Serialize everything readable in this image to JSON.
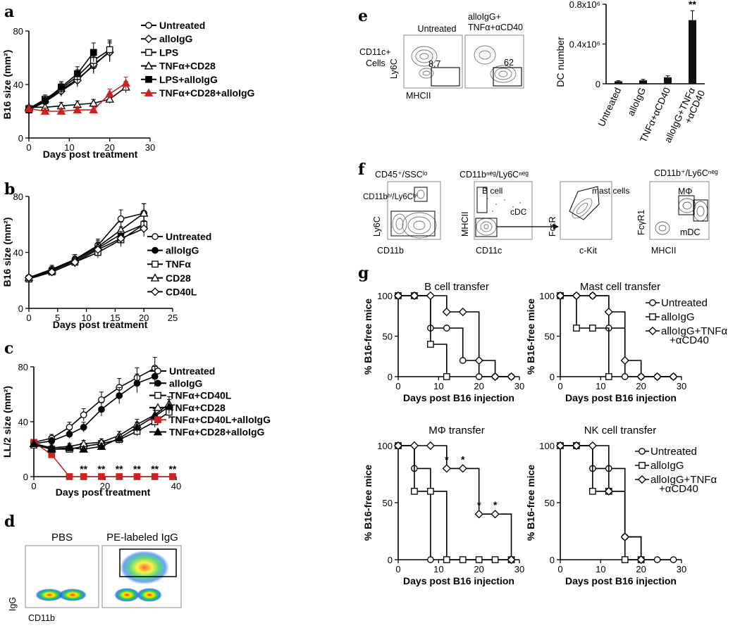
{
  "panel_labels": [
    "a",
    "b",
    "c",
    "d",
    "e",
    "f",
    "g"
  ],
  "colors": {
    "red": "#cc2222",
    "black": "#000000"
  },
  "marker_names": {
    "open-circle": "open circle",
    "filled-circle": "filled circle",
    "open-square": "open square",
    "filled-square": "filled square",
    "open-triangle": "open triangle",
    "filled-triangle": "filled triangle",
    "open-diamond": "open diamond",
    "filled-diamond-red": "red filled square"
  },
  "chart_data": [
    {
      "id": "a",
      "type": "line",
      "xlabel": "Days post treatment",
      "ylabel": "B16 size (mm²)",
      "xlim": [
        0,
        30
      ],
      "ylim": [
        0,
        80
      ],
      "xticks": [
        0,
        10,
        20,
        30
      ],
      "yticks": [
        0,
        40,
        80
      ],
      "series": [
        {
          "name": "Untreated",
          "marker": "open-circle",
          "color": "#000000",
          "x": [
            0,
            4,
            8,
            12,
            16,
            20
          ],
          "y": [
            22,
            28,
            36,
            44,
            54,
            65
          ]
        },
        {
          "name": "alloIgG",
          "marker": "open-diamond",
          "color": "#000000",
          "x": [
            0,
            4,
            8,
            12,
            16,
            20
          ],
          "y": [
            21,
            27,
            35,
            43,
            55,
            64
          ]
        },
        {
          "name": "LPS",
          "marker": "open-square",
          "color": "#000000",
          "x": [
            0,
            4,
            8,
            12,
            16,
            20
          ],
          "y": [
            22,
            29,
            37,
            46,
            58,
            66
          ]
        },
        {
          "name": "TNFα+CD28",
          "marker": "open-triangle",
          "color": "#000000",
          "x": [
            0,
            4,
            8,
            12,
            16,
            20,
            24
          ],
          "y": [
            23,
            23,
            24,
            25,
            26,
            29,
            38
          ]
        },
        {
          "name": "LPS+alloIgG",
          "marker": "filled-square",
          "color": "#000000",
          "x": [
            0,
            4,
            8,
            12,
            16
          ],
          "y": [
            21,
            28,
            38,
            48,
            64
          ]
        },
        {
          "name": "TNFα+CD28+alloIgG",
          "marker": "filled-triangle",
          "color": "#cc2222",
          "x": [
            0,
            4,
            8,
            12,
            16,
            20,
            24
          ],
          "y": [
            22,
            20,
            20,
            21,
            21,
            33,
            41
          ]
        }
      ]
    },
    {
      "id": "b",
      "type": "line",
      "xlabel": "Days post treatment",
      "ylabel": "B16 size (mm²)",
      "xlim": [
        0,
        25
      ],
      "ylim": [
        0,
        80
      ],
      "xticks": [
        0,
        5,
        10,
        15,
        20,
        25
      ],
      "yticks": [
        0,
        40,
        80
      ],
      "series": [
        {
          "name": "Untreated",
          "marker": "open-circle",
          "color": "#000000",
          "x": [
            0,
            4,
            8,
            12,
            16,
            20
          ],
          "y": [
            22,
            28,
            35,
            45,
            64,
            68
          ]
        },
        {
          "name": "alloIgG",
          "marker": "filled-circle",
          "color": "#000000",
          "x": [
            0,
            4,
            8,
            12,
            16,
            20
          ],
          "y": [
            22,
            27,
            34,
            43,
            53,
            60
          ]
        },
        {
          "name": "TNFα",
          "marker": "open-square",
          "color": "#000000",
          "x": [
            0,
            4,
            8,
            12,
            16,
            20
          ],
          "y": [
            21,
            26,
            33,
            40,
            49,
            60
          ]
        },
        {
          "name": "CD28",
          "marker": "open-triangle",
          "color": "#000000",
          "x": [
            0,
            4,
            8,
            12,
            16,
            20
          ],
          "y": [
            22,
            27,
            35,
            44,
            56,
            68
          ]
        },
        {
          "name": "CD40L",
          "marker": "open-diamond",
          "color": "#000000",
          "x": [
            0,
            4,
            8,
            12,
            16,
            20
          ],
          "y": [
            22,
            26,
            33,
            42,
            50,
            57
          ]
        }
      ]
    },
    {
      "id": "c",
      "type": "line",
      "xlabel": "Days post treatment",
      "ylabel": "LL/2 size (mm²)",
      "xlim": [
        0,
        40
      ],
      "ylim": [
        0,
        80
      ],
      "xticks": [
        0,
        20,
        40
      ],
      "yticks": [
        0,
        40,
        80
      ],
      "significance": {
        "label": "**",
        "x": [
          14,
          19,
          24,
          29,
          34,
          39
        ]
      },
      "series": [
        {
          "name": "Untreated",
          "marker": "open-circle",
          "color": "#000000",
          "x": [
            0,
            5,
            10,
            14,
            19,
            24,
            29,
            34
          ],
          "y": [
            25,
            28,
            36,
            45,
            56,
            65,
            72,
            79
          ]
        },
        {
          "name": "alloIgG",
          "marker": "filled-circle",
          "color": "#000000",
          "x": [
            0,
            5,
            10,
            14,
            19,
            24,
            29,
            34
          ],
          "y": [
            24,
            26,
            31,
            36,
            49,
            59,
            68,
            73
          ]
        },
        {
          "name": "TNFα+CD40L",
          "marker": "open-square",
          "color": "#000000",
          "x": [
            0,
            5,
            10,
            14,
            19,
            24,
            29,
            34,
            38
          ],
          "y": [
            23,
            20,
            20,
            22,
            24,
            27,
            33,
            40,
            47
          ]
        },
        {
          "name": "TNFα+CD28",
          "marker": "open-triangle",
          "color": "#000000",
          "x": [
            0,
            5,
            10,
            14,
            19,
            24,
            29,
            34,
            38
          ],
          "y": [
            24,
            21,
            22,
            24,
            25,
            30,
            38,
            45,
            53
          ]
        },
        {
          "name": "TNFα+CD40L+alloIgG",
          "marker": "filled-square",
          "color": "#cc2222",
          "x": [
            0,
            5,
            10,
            14,
            19,
            24,
            29,
            34,
            39
          ],
          "y": [
            25,
            16,
            0,
            0,
            0,
            0,
            0,
            0,
            0
          ]
        },
        {
          "name": "TNFα+CD28+alloIgG",
          "marker": "filled-triangle",
          "color": "#000000",
          "x": [
            0,
            5,
            10,
            14,
            19,
            24,
            29,
            34,
            38
          ],
          "y": [
            24,
            20,
            21,
            20,
            22,
            28,
            36,
            44,
            51
          ]
        }
      ]
    },
    {
      "id": "e",
      "type": "bar",
      "ylabel": "DC number",
      "ylim": [
        0,
        800000
      ],
      "ytick_labels": [
        "0",
        "0.4x10⁶",
        "0.8x10⁶"
      ],
      "categories": [
        "Untreated",
        "alloIgG",
        "TNFα+αCD40",
        "alloIgG+TNFα\n+αCD40"
      ],
      "values": [
        25000,
        35000,
        65000,
        640000
      ],
      "errors": [
        6000,
        10000,
        15000,
        95000
      ],
      "annotations": [
        {
          "category": "alloIgG+TNFα\n+αCD40",
          "text": "**"
        }
      ]
    },
    {
      "id": "g1",
      "type": "line",
      "title": "B cell transfer",
      "xlabel": "Days post B16 injection",
      "ylabel": "% B16-free mice",
      "xlim": [
        0,
        30
      ],
      "ylim": [
        0,
        100
      ],
      "xticks": [
        0,
        10,
        20,
        30
      ],
      "yticks": [
        0,
        50,
        100
      ],
      "series": [
        {
          "name": "Untreated",
          "marker": "open-circle",
          "x": [
            0,
            4,
            8,
            12,
            16,
            20,
            24,
            28
          ],
          "y": [
            100,
            100,
            60,
            60,
            20,
            0,
            0,
            0
          ]
        },
        {
          "name": "alloIgG",
          "marker": "open-square",
          "x": [
            0,
            4,
            8,
            12
          ],
          "y": [
            100,
            100,
            40,
            0
          ]
        },
        {
          "name": "alloIgG+TNFα+αCD40",
          "marker": "open-diamond",
          "x": [
            0,
            4,
            8,
            12,
            16,
            20,
            24,
            28
          ],
          "y": [
            100,
            100,
            100,
            80,
            80,
            20,
            0,
            0
          ]
        }
      ]
    },
    {
      "id": "g2",
      "type": "line",
      "title": "Mast cell transfer",
      "xlabel": "Days post B16 injection",
      "ylabel": "% B16-free mice",
      "xlim": [
        0,
        30
      ],
      "ylim": [
        0,
        100
      ],
      "xticks": [
        0,
        10,
        20,
        30
      ],
      "yticks": [
        0,
        50,
        100
      ],
      "legend": [
        "Untreated",
        "alloIgG",
        "alloIgG+TNFα",
        "+αCD40"
      ],
      "series": [
        {
          "name": "Untreated",
          "marker": "open-circle",
          "x": [
            0,
            4,
            8,
            12,
            16,
            20,
            24,
            28
          ],
          "y": [
            100,
            100,
            100,
            60,
            0,
            0,
            0,
            0
          ]
        },
        {
          "name": "alloIgG",
          "marker": "open-square",
          "x": [
            0,
            4,
            8,
            12
          ],
          "y": [
            100,
            60,
            60,
            0
          ]
        },
        {
          "name": "alloIgG+TNFα+αCD40",
          "marker": "open-diamond",
          "x": [
            0,
            4,
            8,
            12,
            16,
            20,
            24,
            28
          ],
          "y": [
            100,
            100,
            100,
            80,
            20,
            0,
            0,
            0
          ]
        }
      ]
    },
    {
      "id": "g3",
      "type": "line",
      "title": "MΦ transfer",
      "xlabel": "Days post B16 injection",
      "ylabel": "% B16-free mice",
      "xlim": [
        0,
        30
      ],
      "ylim": [
        0,
        100
      ],
      "xticks": [
        0,
        10,
        20,
        30
      ],
      "yticks": [
        0,
        50,
        100
      ],
      "significance": {
        "label": "*",
        "x": [
          12,
          16,
          20,
          24
        ]
      },
      "series": [
        {
          "name": "Untreated",
          "marker": "open-circle",
          "x": [
            0,
            4,
            8
          ],
          "y": [
            100,
            80,
            0
          ]
        },
        {
          "name": "alloIgG",
          "marker": "open-square",
          "x": [
            0,
            4,
            8,
            12,
            16,
            20,
            24,
            28
          ],
          "y": [
            100,
            60,
            60,
            0,
            0,
            0,
            0,
            0
          ]
        },
        {
          "name": "alloIgG+TNFα+αCD40",
          "marker": "open-diamond",
          "x": [
            0,
            4,
            8,
            12,
            16,
            20,
            24,
            28
          ],
          "y": [
            100,
            100,
            100,
            80,
            80,
            40,
            40,
            0
          ]
        }
      ]
    },
    {
      "id": "g4",
      "type": "line",
      "title": "NK cell transfer",
      "xlabel": "Days post B16 injection",
      "ylabel": "% B16-free mice",
      "xlim": [
        0,
        30
      ],
      "ylim": [
        0,
        100
      ],
      "xticks": [
        0,
        10,
        20,
        30
      ],
      "yticks": [
        0,
        50,
        100
      ],
      "legend": [
        "Untreated",
        "alloIgG",
        "alloIgG+TNFα",
        "+αCD40"
      ],
      "series": [
        {
          "name": "Untreated",
          "marker": "open-circle",
          "x": [
            0,
            4,
            8,
            12,
            16,
            20,
            24,
            28
          ],
          "y": [
            100,
            100,
            80,
            80,
            20,
            0,
            0,
            0
          ]
        },
        {
          "name": "alloIgG",
          "marker": "open-square",
          "x": [
            0,
            4,
            8,
            12,
            16,
            20
          ],
          "y": [
            100,
            100,
            60,
            60,
            0,
            0
          ]
        },
        {
          "name": "alloIgG+TNFα+αCD40",
          "marker": "open-diamond",
          "x": [
            0,
            4,
            8,
            12,
            16,
            20
          ],
          "y": [
            100,
            100,
            100,
            60,
            20,
            0
          ]
        }
      ]
    }
  ],
  "flow": {
    "d": {
      "left_title": "PBS",
      "right_title": "PE-labeled IgG",
      "ylabel": "IgG",
      "xlabel": "CD11b"
    },
    "e": {
      "row_label_1": "CD11c+",
      "row_label_2": "Cells",
      "left_title": "Untreated",
      "right_title_1": "alloIgG+",
      "right_title_2": "TNFα+αCD40",
      "ylabel": "Ly6C",
      "xlabel": "MHCII",
      "left_pct": "8.7",
      "right_pct": "62"
    },
    "f": {
      "p1_title": "CD45⁺/SSCˡᵒ",
      "p1_gate": "CD11bʰⁱ/Ly6Cʰⁱ",
      "p1_ylabel": "Ly6C",
      "p1_xlabel": "CD11b",
      "p2_title": "CD11bⁿᵉᵍ/Ly6Cⁿᵉᵍ",
      "p2_gate1": "B cell",
      "p2_gate2": "cDC",
      "p2_ylabel": "MHCII",
      "p2_xlabel": "CD11c",
      "p3_gate": "mast cells",
      "p3_ylabel": "FcεR",
      "p3_xlabel": "c-Kit",
      "p4_title": "CD11b⁺/Ly6Cⁿᵉᵍ",
      "p4_gate1": "MΦ",
      "p4_gate2": "mDC",
      "p4_ylabel": "FcγR1",
      "p4_xlabel": "MHCII"
    }
  }
}
